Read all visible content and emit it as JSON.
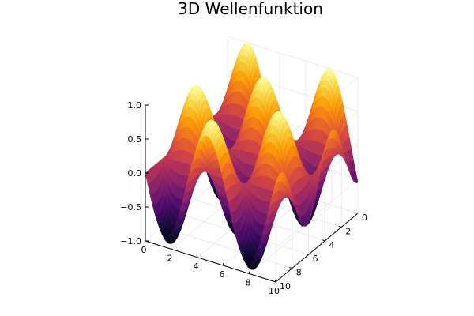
{
  "chart_data": {
    "type": "surface3d",
    "title": "3D Wellenfunktion",
    "function": "z = sin(x) * cos(y)",
    "x": {
      "range": [
        0,
        10
      ],
      "ticks": [
        0,
        2,
        4,
        6,
        8,
        10
      ],
      "labels": [
        "0",
        "2",
        "4",
        "6",
        "8",
        "10"
      ]
    },
    "y": {
      "range": [
        0,
        10
      ],
      "ticks": [
        0,
        2,
        4,
        6,
        8,
        10
      ],
      "labels": [
        "0",
        "2",
        "4",
        "6",
        "8",
        "10"
      ]
    },
    "z": {
      "range": [
        -1,
        1
      ],
      "ticks": [
        -1,
        -0.5,
        0,
        0.5,
        1
      ],
      "labels": [
        "−1.0",
        "−0.5",
        "0.0",
        "0.5",
        "1.0"
      ]
    },
    "colormap": "inferno",
    "colormap_stops": [
      "#000004",
      "#1b0c41",
      "#4a0c6b",
      "#781c6d",
      "#a52c60",
      "#cf4446",
      "#ed6925",
      "#fb9b06",
      "#f7d13d",
      "#fcffa4"
    ],
    "grid": true
  }
}
